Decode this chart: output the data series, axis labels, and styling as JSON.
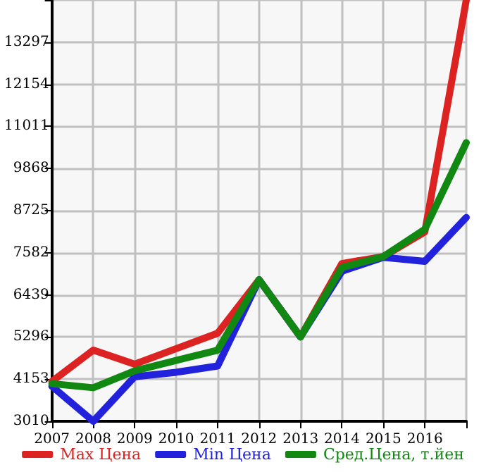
{
  "chart_data": {
    "type": "line",
    "x": [
      2007,
      2008,
      2009,
      2010,
      2011,
      2012,
      2013,
      2014,
      2015,
      2016,
      2017
    ],
    "series": [
      {
        "name": "Max Цена",
        "color": "#dd2222",
        "values": [
          4090,
          4940,
          4560,
          4980,
          5400,
          6850,
          5300,
          7290,
          7480,
          8150,
          14440
        ]
      },
      {
        "name": "Min Цена",
        "color": "#2222dd",
        "values": [
          3960,
          3010,
          4220,
          4340,
          4510,
          6850,
          5300,
          7080,
          7460,
          7350,
          8540
        ]
      },
      {
        "name": "Сред.Цена, т.йен",
        "color": "#118811",
        "values": [
          4030,
          3920,
          4380,
          4660,
          4940,
          6850,
          5300,
          7180,
          7480,
          8220,
          10570
        ]
      }
    ],
    "xlim": [
      2007,
      2017
    ],
    "xticks": [
      2007,
      2008,
      2009,
      2010,
      2011,
      2012,
      2013,
      2014,
      2015,
      2016,
      {
        "value": 2017,
        "label": null
      }
    ],
    "ylim": [
      3010,
      14440
    ],
    "yticks": [
      3010,
      4153,
      5296,
      6439,
      7582,
      8725,
      9868,
      11011,
      12154,
      13297,
      {
        "value": 14440,
        "label": null
      }
    ],
    "grid": true,
    "legend": "bottom",
    "marker": "none",
    "line_style": "solid"
  }
}
